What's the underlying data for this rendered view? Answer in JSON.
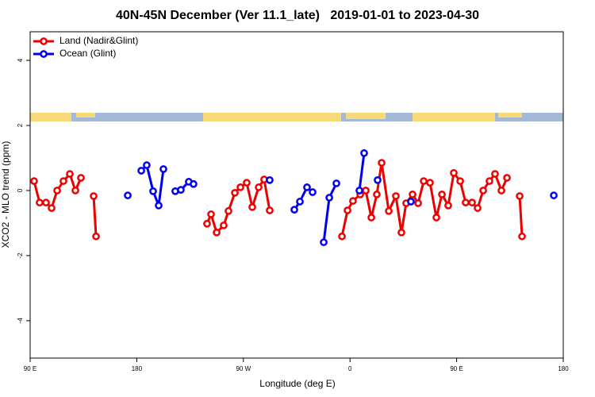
{
  "chart_data": {
    "type": "line",
    "title": "40N-45N December (Ver 11.1_late)   2019-01-01 to 2023-04-30",
    "x_label": "Longitude (deg E)",
    "y_label": "XCO2 - MLO trend (ppm)",
    "xlim": [
      90,
      540
    ],
    "xticks": [
      {
        "value": 90,
        "label": "90 E"
      },
      {
        "value": 180,
        "label": "180"
      },
      {
        "value": 270,
        "label": "90 W"
      },
      {
        "value": 360,
        "label": "0"
      },
      {
        "value": 450,
        "label": "90 E"
      },
      {
        "value": 540,
        "label": "180"
      }
    ],
    "ylim": [
      -5.15,
      4.88
    ],
    "yticks": [
      -4,
      -2,
      0,
      2,
      4
    ],
    "legend": "top-left",
    "series": [
      {
        "name": "Land (Nadir&Glint)",
        "color": "#ee0000",
        "x": [
          93.3,
          98.0,
          103.4,
          108.1,
          112.8,
          118.1,
          123.5,
          128.2,
          132.9,
          null,
          143.6,
          145.6,
          null,
          239.3,
          242.7,
          247.4,
          253.4,
          257.4,
          262.8,
          267.5,
          272.8,
          277.5,
          282.9,
          287.5,
          292.2,
          null,
          353.2,
          357.9,
          362.5,
          368.6,
          373.3,
          378.0,
          382.6,
          386.7,
          392.7,
          398.7,
          403.4,
          407.4,
          412.8,
          417.5,
          422.2,
          427.5,
          432.9,
          437.6,
          442.9,
          447.6,
          453.0,
          457.6,
          463.0,
          467.7,
          472.4,
          477.7,
          482.4,
          487.8,
          492.5,
          null,
          503.2,
          505.2
        ],
        "values": [
          0.29,
          -0.37,
          -0.37,
          -0.54,
          0.0,
          0.29,
          0.51,
          0.0,
          0.39,
          null,
          -0.17,
          -1.41,
          null,
          -1.02,
          -0.73,
          -1.29,
          -1.07,
          -0.63,
          -0.07,
          0.1,
          0.24,
          -0.51,
          0.1,
          0.34,
          -0.61,
          null,
          -1.41,
          -0.61,
          -0.32,
          -0.12,
          0.0,
          -0.83,
          -0.12,
          0.85,
          -0.63,
          -0.17,
          -1.29,
          -0.39,
          -0.12,
          -0.39,
          0.29,
          0.24,
          -0.83,
          -0.12,
          -0.46,
          0.54,
          0.29,
          -0.37,
          -0.37,
          -0.54,
          0.0,
          0.29,
          0.51,
          0.0,
          0.39,
          null,
          -0.17,
          -1.41
        ]
      },
      {
        "name": "Ocean (Glint)",
        "color": "#0000ee",
        "x": [
          172.4,
          null,
          183.8,
          188.4,
          193.8,
          198.5,
          202.5,
          null,
          212.5,
          217.2,
          223.9,
          227.9,
          null,
          292.2,
          null,
          313.0,
          317.7,
          323.7,
          328.4,
          null,
          337.8,
          342.5,
          348.5,
          null,
          367.9,
          371.9,
          null,
          383.3,
          null,
          411.4,
          null,
          532.0
        ],
        "values": [
          -0.15,
          null,
          0.61,
          0.78,
          -0.02,
          -0.46,
          0.66,
          null,
          -0.02,
          0.02,
          0.27,
          0.2,
          null,
          0.32,
          null,
          -0.59,
          -0.34,
          0.1,
          -0.05,
          null,
          -1.59,
          -0.22,
          0.22,
          null,
          0.0,
          1.15,
          null,
          0.32,
          null,
          -0.34,
          null,
          -0.15
        ]
      }
    ]
  }
}
